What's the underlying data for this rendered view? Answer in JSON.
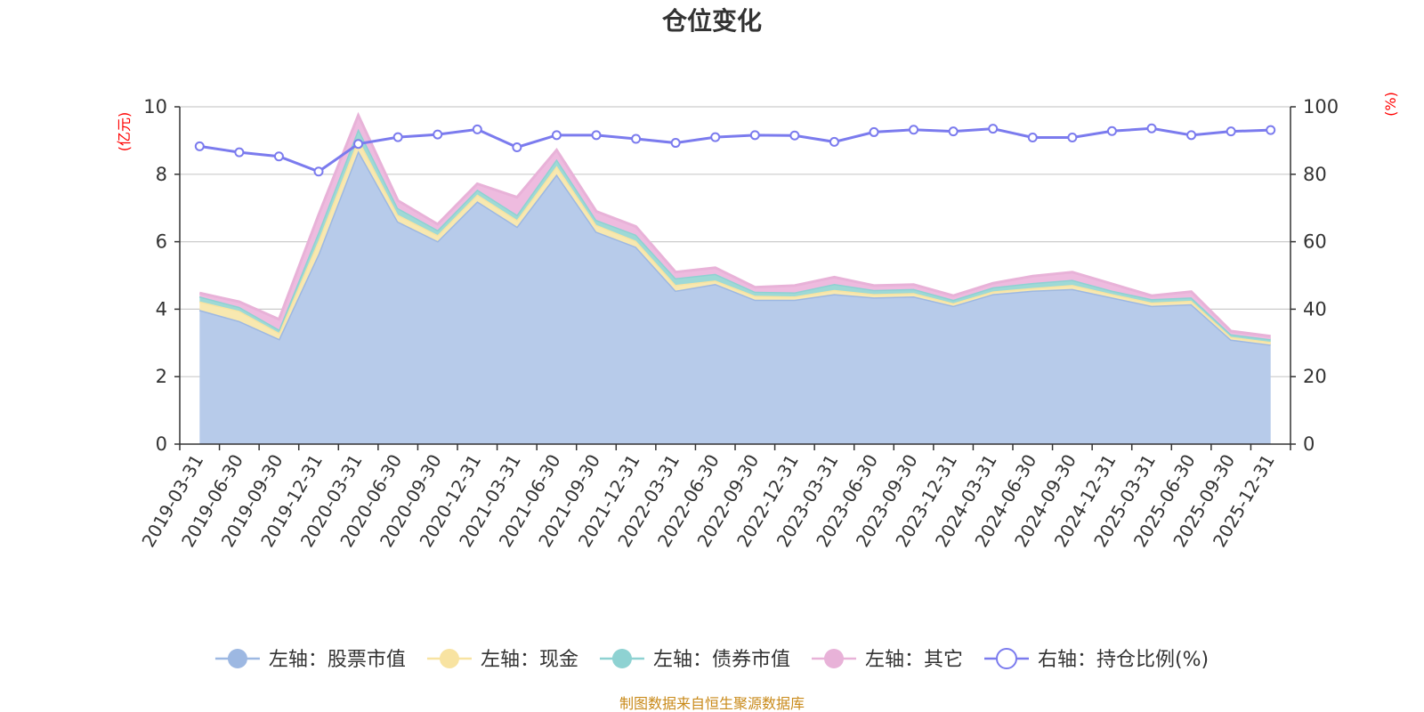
{
  "chart_data": {
    "type": "area",
    "title": "仓位变化",
    "y_left_unit": "(亿元)",
    "y_right_unit": "(%)",
    "y_left_range": [
      0,
      10
    ],
    "y_right_range": [
      0,
      100
    ],
    "y_left_ticks": [
      "0",
      "2",
      "4",
      "6",
      "8",
      "10"
    ],
    "y_right_ticks": [
      "0",
      "20",
      "40",
      "60",
      "80",
      "100"
    ],
    "categories": [
      "2019-03-31",
      "2019-06-30",
      "2019-09-30",
      "2019-12-31",
      "2020-03-31",
      "2020-06-30",
      "2020-09-30",
      "2020-12-31",
      "2021-03-31",
      "2021-06-30",
      "2021-09-30",
      "2021-12-31",
      "2022-03-31",
      "2022-06-30",
      "2022-09-30",
      "2022-12-31",
      "2023-03-31",
      "2023-06-30",
      "2023-09-30",
      "2023-12-31",
      "2024-03-31",
      "2024-06-30",
      "2024-09-30",
      "2024-12-31",
      "2025-03-31",
      "2025-06-30",
      "2025-09-30",
      "2025-12-31"
    ],
    "x_tick_labels": [
      "2019-03-31",
      "2019-06-30",
      "2019-09-30",
      "2019-12-31",
      "2020-03-31",
      "2020-06-30",
      "2020-09-30",
      "2020-12-31",
      "2021-03-31",
      "2021-06-30",
      "2021-09-30",
      "2021-12-31",
      "2022-03-31",
      "2022-06-30",
      "2022-09-30",
      "2022-12-31",
      "2023-03-31",
      "2023-06-30",
      "2023-09-30",
      "2023-12-31",
      "2024-03-31",
      "2024-06-30",
      "2024-09-30",
      "2024-12-31",
      "2025-03-31",
      "2025-06-30",
      "2025-09-30",
      "2025-12-31"
    ],
    "series": [
      {
        "name": "左轴：股票市值",
        "axis": "left",
        "stacked": true,
        "color": "#9db8e2",
        "fill": "#b7cbea",
        "values": [
          3.98,
          3.65,
          3.12,
          5.65,
          8.7,
          6.6,
          6.02,
          7.2,
          6.45,
          8.0,
          6.3,
          5.85,
          4.55,
          4.75,
          4.28,
          4.28,
          4.45,
          4.35,
          4.38,
          4.1,
          4.45,
          4.55,
          4.6,
          4.35,
          4.1,
          4.15,
          3.1,
          2.95
        ]
      },
      {
        "name": "左轴：现金",
        "axis": "left",
        "stacked": true,
        "color": "#f8e3a1",
        "fill": "#f8e8b0",
        "values": [
          0.25,
          0.3,
          0.18,
          0.4,
          0.35,
          0.2,
          0.18,
          0.2,
          0.2,
          0.25,
          0.2,
          0.18,
          0.17,
          0.1,
          0.12,
          0.1,
          0.12,
          0.1,
          0.1,
          0.08,
          0.08,
          0.08,
          0.12,
          0.1,
          0.1,
          0.1,
          0.08,
          0.08
        ]
      },
      {
        "name": "左轴：债券市值",
        "axis": "left",
        "stacked": true,
        "color": "#8ed2d2",
        "fill": "#9ed9d6",
        "values": [
          0.15,
          0.12,
          0.1,
          0.25,
          0.3,
          0.2,
          0.15,
          0.15,
          0.15,
          0.2,
          0.15,
          0.18,
          0.2,
          0.2,
          0.12,
          0.12,
          0.18,
          0.12,
          0.12,
          0.1,
          0.12,
          0.15,
          0.15,
          0.1,
          0.1,
          0.1,
          0.08,
          0.08
        ]
      },
      {
        "name": "左轴：其它",
        "axis": "left",
        "stacked": true,
        "color": "#e8b2d8",
        "fill": "#eebbdf",
        "values": [
          0.1,
          0.15,
          0.3,
          0.5,
          0.4,
          0.22,
          0.17,
          0.17,
          0.52,
          0.27,
          0.25,
          0.24,
          0.18,
          0.18,
          0.13,
          0.2,
          0.2,
          0.13,
          0.13,
          0.12,
          0.12,
          0.2,
          0.23,
          0.2,
          0.1,
          0.17,
          0.09,
          0.09
        ]
      },
      {
        "name": "右轴：持仓比例(%)",
        "axis": "right",
        "stacked": false,
        "color": "#7b7bee",
        "values": [
          88.3,
          86.5,
          85.3,
          80.8,
          89.0,
          91.0,
          91.8,
          93.3,
          88.0,
          91.6,
          91.6,
          90.5,
          89.3,
          91.0,
          91.6,
          91.5,
          89.6,
          92.5,
          93.2,
          92.7,
          93.5,
          90.9,
          90.9,
          92.8,
          93.6,
          91.6,
          92.7,
          93.1
        ]
      }
    ],
    "legend_position": "bottom",
    "grid": true
  },
  "footer": {
    "source": "制图数据来自恒生聚源数据库",
    "source_color": "#c98a1a"
  },
  "colors": {
    "axis": "#333333",
    "grid": "#cccccc",
    "unit": "#ff0000"
  }
}
